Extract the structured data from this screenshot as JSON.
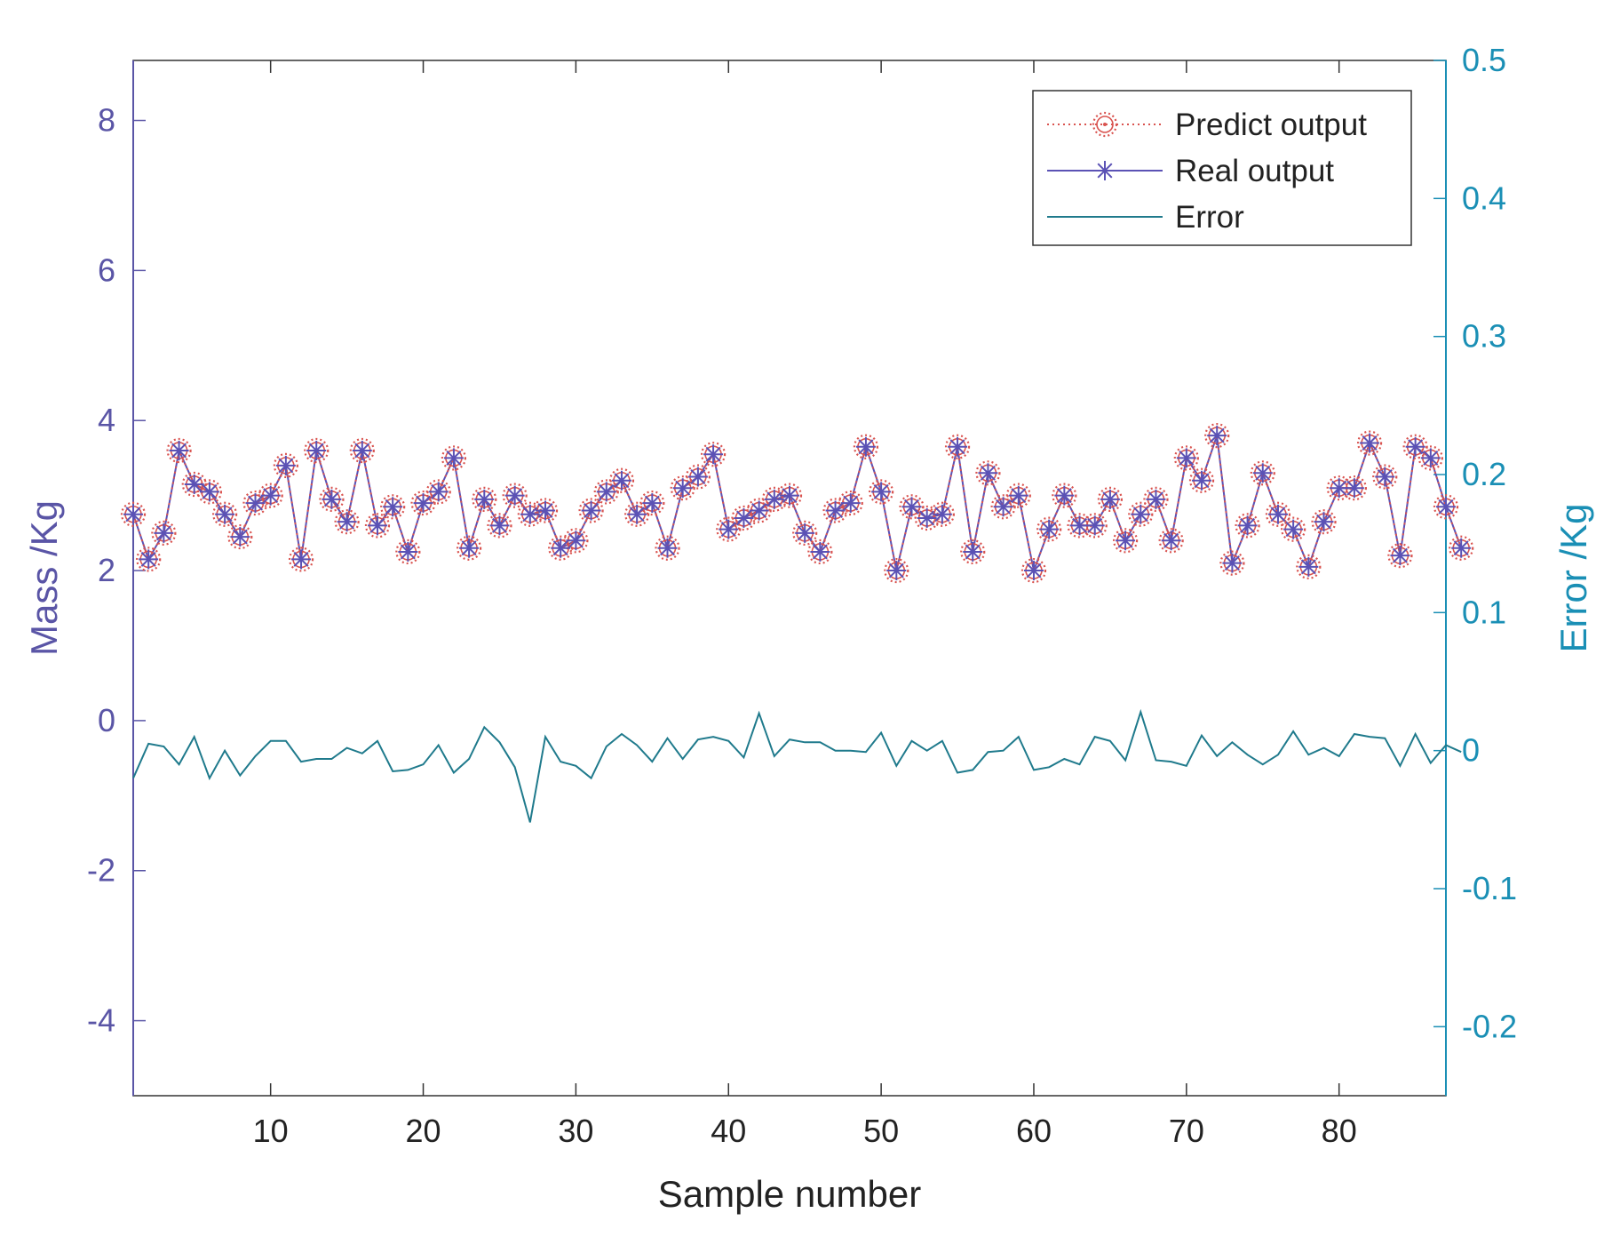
{
  "chart_data": {
    "type": "line",
    "title": "",
    "xlabel": "Sample number",
    "ylabel_left": "Mass /Kg",
    "ylabel_right": "Error /Kg",
    "xlim": [
      1,
      87
    ],
    "ylim_left": [
      -5,
      8.8
    ],
    "ylim_right": [
      -0.25,
      0.5
    ],
    "x_ticks": [
      10,
      20,
      30,
      40,
      50,
      60,
      70,
      80
    ],
    "x_tick_labels": [
      "10",
      "20",
      "30",
      "40",
      "50",
      "60",
      "70",
      "80"
    ],
    "y_left_ticks": [
      -4,
      -2,
      0,
      2,
      4,
      6,
      8
    ],
    "y_left_tick_labels": [
      "-4",
      "-2",
      "0",
      "2",
      "4",
      "6",
      "8"
    ],
    "y_right_ticks": [
      -0.2,
      -0.1,
      0,
      0.1,
      0.2,
      0.3,
      0.4,
      0.5
    ],
    "y_right_tick_labels": [
      "-0.2",
      "-0.1",
      "0",
      "0.1",
      "0.2",
      "0.3",
      "0.4",
      "0.5"
    ],
    "legend_position": "top-right",
    "colors": {
      "left_axis": "#5a55a6",
      "right_axis": "#1a8fb5",
      "predict": "#d9534f",
      "real": "#5b52b5",
      "error": "#1f7a8c",
      "frame": "#333333"
    },
    "series": [
      {
        "name": "Predict output",
        "axis": "left",
        "style": "dotted-circle",
        "values": [
          2.75,
          2.15,
          2.5,
          3.6,
          3.15,
          3.05,
          2.75,
          2.45,
          2.9,
          3.0,
          3.4,
          2.15,
          3.6,
          2.95,
          2.65,
          3.6,
          2.6,
          2.85,
          2.25,
          2.9,
          3.05,
          3.5,
          2.3,
          2.95,
          2.6,
          3.0,
          2.75,
          2.8,
          2.3,
          2.4,
          2.8,
          3.05,
          3.2,
          2.75,
          2.9,
          2.3,
          3.1,
          3.25,
          3.55,
          2.55,
          2.7,
          2.8,
          2.95,
          3.0,
          2.5,
          2.25,
          2.8,
          2.9,
          3.65,
          3.05,
          2.0,
          2.85,
          2.7,
          2.75,
          3.65,
          2.25,
          3.3,
          2.85,
          3.0,
          2.0,
          2.55,
          3.0,
          2.6,
          2.6,
          2.95,
          2.4,
          2.75,
          2.95,
          2.4,
          3.5,
          3.2,
          3.8,
          2.1,
          2.6,
          3.3,
          2.75,
          2.55,
          2.05,
          2.65,
          3.1,
          3.1,
          3.7,
          3.25,
          2.2,
          3.65,
          3.5,
          2.85,
          2.3
        ]
      },
      {
        "name": "Real output",
        "axis": "left",
        "style": "solid-asterisk",
        "values": [
          2.75,
          2.15,
          2.5,
          3.6,
          3.15,
          3.05,
          2.75,
          2.45,
          2.9,
          3.0,
          3.4,
          2.15,
          3.6,
          2.95,
          2.65,
          3.6,
          2.6,
          2.85,
          2.25,
          2.9,
          3.05,
          3.5,
          2.3,
          2.95,
          2.6,
          3.0,
          2.75,
          2.8,
          2.3,
          2.4,
          2.8,
          3.05,
          3.2,
          2.75,
          2.9,
          2.3,
          3.1,
          3.25,
          3.55,
          2.55,
          2.7,
          2.8,
          2.95,
          3.0,
          2.5,
          2.25,
          2.8,
          2.9,
          3.65,
          3.05,
          2.0,
          2.85,
          2.7,
          2.75,
          3.65,
          2.25,
          3.3,
          2.85,
          3.0,
          2.0,
          2.55,
          3.0,
          2.6,
          2.6,
          2.95,
          2.4,
          2.75,
          2.95,
          2.4,
          3.5,
          3.2,
          3.8,
          2.1,
          2.6,
          3.3,
          2.75,
          2.55,
          2.05,
          2.65,
          3.1,
          3.1,
          3.7,
          3.25,
          2.2,
          3.65,
          3.5,
          2.85,
          2.3
        ]
      },
      {
        "name": "Error",
        "axis": "right",
        "style": "solid",
        "values": [
          -0.02,
          0.005,
          0.003,
          -0.01,
          0.01,
          -0.02,
          0.0,
          -0.018,
          -0.004,
          0.007,
          0.007,
          -0.008,
          -0.006,
          -0.006,
          0.002,
          -0.002,
          0.007,
          -0.015,
          -0.014,
          -0.01,
          0.004,
          -0.016,
          -0.006,
          0.017,
          0.006,
          -0.012,
          -0.052,
          0.01,
          -0.008,
          -0.011,
          -0.02,
          0.003,
          0.012,
          0.004,
          -0.008,
          0.009,
          -0.006,
          0.008,
          0.01,
          0.007,
          -0.005,
          0.027,
          -0.004,
          0.008,
          0.006,
          0.006,
          0.0,
          0.0,
          -0.001,
          0.013,
          -0.011,
          0.007,
          0.0,
          0.007,
          -0.016,
          -0.014,
          -0.001,
          0.0,
          0.01,
          -0.014,
          -0.012,
          -0.006,
          -0.01,
          0.01,
          0.007,
          -0.007,
          0.028,
          -0.007,
          -0.008,
          -0.011,
          0.011,
          -0.004,
          0.006,
          -0.003,
          -0.01,
          -0.003,
          0.014,
          -0.003,
          0.002,
          -0.004,
          0.012,
          0.01,
          0.009,
          -0.011,
          0.012,
          -0.009,
          0.004,
          -0.001
        ]
      }
    ]
  }
}
